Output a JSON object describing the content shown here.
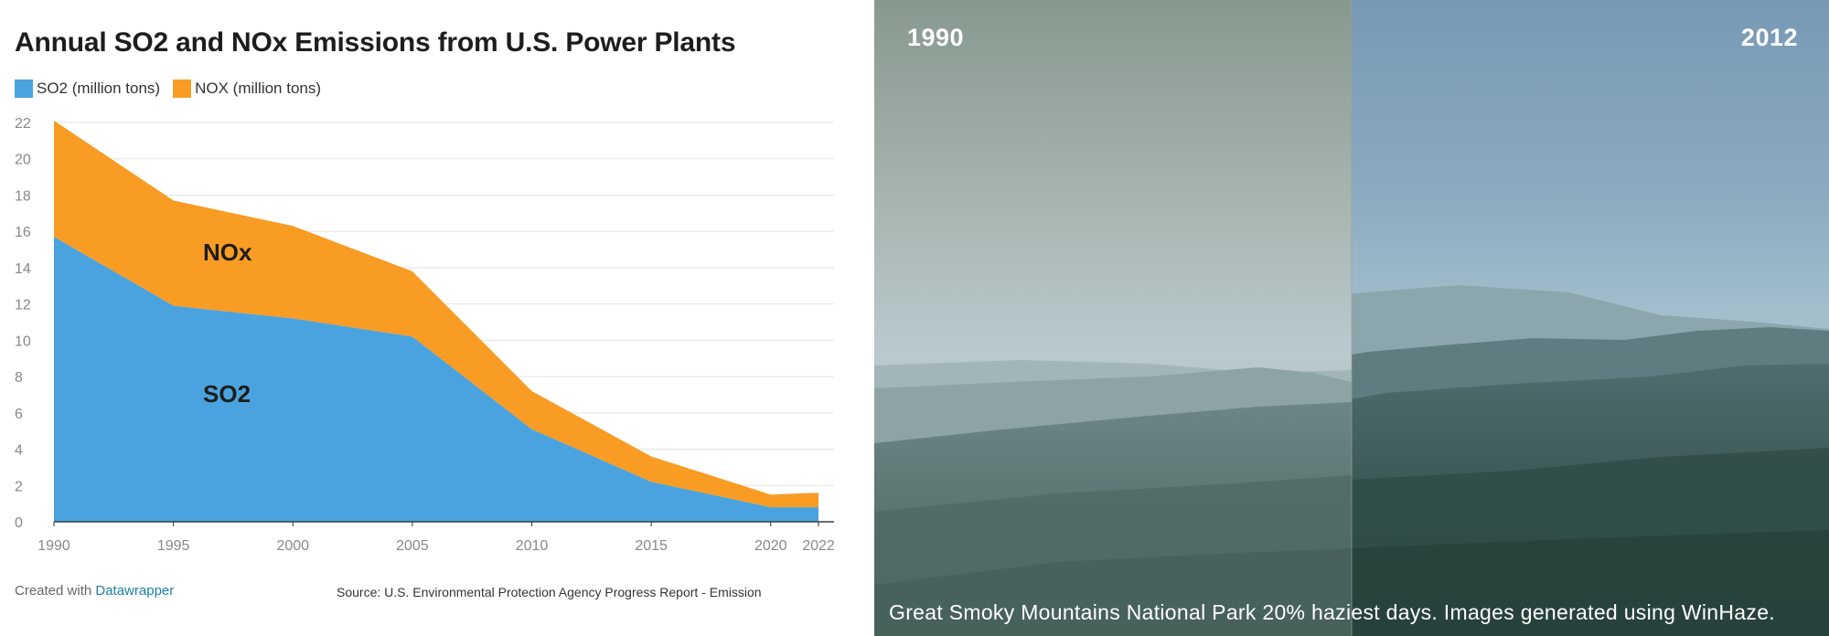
{
  "chart": {
    "title": "Annual SO2 and NOx Emissions from U.S. Power Plants",
    "legend": [
      {
        "label": "SO2 (million tons)",
        "color": "#4aa3df"
      },
      {
        "label": "NOX (million tons)",
        "color": "#f89c24"
      }
    ],
    "annotations": {
      "nox": "NOx",
      "so2": "SO2"
    },
    "footer": {
      "created_prefix": "Created with ",
      "created_link": "Datawrapper",
      "source": "Source: U.S. Environmental Protection Agency Progress Report - Emission"
    }
  },
  "chart_data": {
    "type": "area",
    "stacked": true,
    "title": "Annual SO2 and NOx Emissions from U.S. Power Plants",
    "xlabel": "",
    "ylabel": "",
    "x": [
      1990,
      1995,
      2000,
      2005,
      2010,
      2015,
      2020,
      2022
    ],
    "x_ticks": [
      1990,
      1995,
      2000,
      2005,
      2010,
      2015,
      2020,
      2022
    ],
    "y_ticks": [
      0,
      2,
      4,
      6,
      8,
      10,
      12,
      14,
      16,
      18,
      20,
      22
    ],
    "ylim": [
      0,
      22
    ],
    "grid": true,
    "legend_position": "top-left",
    "series": [
      {
        "name": "SO2 (million tons)",
        "color": "#4aa3df",
        "values": [
          15.7,
          11.9,
          11.2,
          10.2,
          5.1,
          2.2,
          0.8,
          0.8
        ]
      },
      {
        "name": "NOX (million tons)",
        "color": "#f89c24",
        "values": [
          6.4,
          5.8,
          5.1,
          3.6,
          2.1,
          1.4,
          0.7,
          0.8
        ]
      }
    ]
  },
  "photo": {
    "left_year": "1990",
    "right_year": "2012",
    "caption": "Great Smoky Mountains National Park 20% haziest days. Images generated using WinHaze."
  }
}
